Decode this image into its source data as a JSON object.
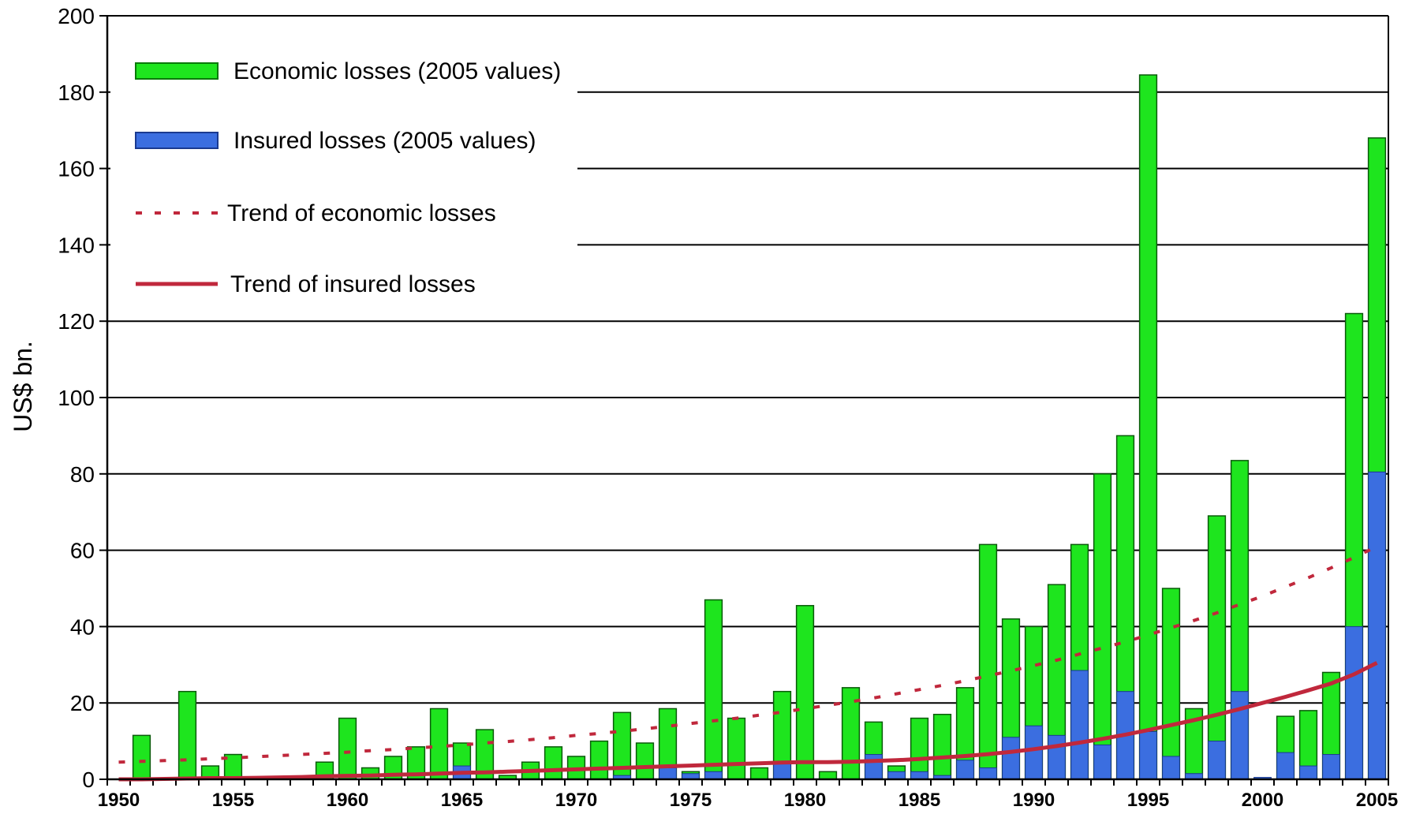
{
  "chart_data": {
    "type": "bar",
    "title": "",
    "xlabel": "",
    "ylabel": "US$ bn.",
    "ylim": [
      0,
      200
    ],
    "yticks": [
      0,
      20,
      40,
      60,
      80,
      100,
      120,
      140,
      160,
      180,
      200
    ],
    "xtick_labels": [
      {
        "year": 1950,
        "label": "1950"
      },
      {
        "year": 1955,
        "label": "1955"
      },
      {
        "year": 1960,
        "label": "1960"
      },
      {
        "year": 1965,
        "label": "1965"
      },
      {
        "year": 1970,
        "label": "1970"
      },
      {
        "year": 1975,
        "label": "1975"
      },
      {
        "year": 1980,
        "label": "1980"
      },
      {
        "year": 1985,
        "label": "1985"
      },
      {
        "year": 1990,
        "label": "1990"
      },
      {
        "year": 1995,
        "label": "1995"
      },
      {
        "year": 2000,
        "label": "2000"
      },
      {
        "year": 2005,
        "label": "2005"
      }
    ],
    "grid": true,
    "legend_position": "top-left",
    "years": [
      1950,
      1951,
      1952,
      1953,
      1954,
      1955,
      1956,
      1957,
      1958,
      1959,
      1960,
      1961,
      1962,
      1963,
      1964,
      1965,
      1966,
      1967,
      1968,
      1969,
      1970,
      1971,
      1972,
      1973,
      1974,
      1975,
      1976,
      1977,
      1978,
      1979,
      1980,
      1981,
      1982,
      1983,
      1984,
      1985,
      1986,
      1987,
      1988,
      1989,
      1990,
      1991,
      1992,
      1993,
      1994,
      1995,
      1996,
      1997,
      1998,
      1999,
      2000,
      2001,
      2002,
      2003,
      2004,
      2005
    ],
    "series": [
      {
        "name": "Economic losses (2005 values)",
        "kind": "bar",
        "color": "#1ee51e",
        "values": [
          0,
          11.5,
          0,
          23,
          3.5,
          6.5,
          0,
          0,
          0,
          4.5,
          16,
          3,
          6,
          8.5,
          18.5,
          9.5,
          13,
          1,
          4.5,
          8.5,
          6,
          10,
          17.5,
          9.5,
          18.5,
          2,
          47,
          16,
          3,
          23,
          45.5,
          2,
          24,
          15,
          3.5,
          16,
          17,
          24,
          61.5,
          42,
          40,
          51,
          61.5,
          80,
          90,
          184.5,
          50,
          18.5,
          69,
          83.5,
          0,
          16.5,
          18,
          28,
          122,
          168
        ]
      },
      {
        "name": "Insured losses (2005 values)",
        "kind": "bar",
        "color": "#3b6ee0",
        "values": [
          0,
          0,
          0,
          0,
          0,
          0,
          0,
          0,
          0,
          0,
          0,
          0,
          0,
          0,
          0,
          3.5,
          0,
          0,
          0,
          0,
          0,
          0,
          1,
          0,
          3,
          1.5,
          2,
          0,
          0,
          4.5,
          0,
          0,
          0,
          6.5,
          2,
          2,
          1,
          5,
          3,
          11,
          14,
          11.5,
          28.5,
          9,
          23,
          12.5,
          6,
          1.5,
          10,
          23,
          0.5,
          7,
          3.5,
          6.5,
          40,
          80.5
        ]
      },
      {
        "name": "Trend of economic losses",
        "kind": "dashed-line",
        "color": "#c0283c",
        "values": [
          4.5,
          4.7,
          4.9,
          5.1,
          5.4,
          5.6,
          5.9,
          6.2,
          6.5,
          6.8,
          7.1,
          7.5,
          7.8,
          8.2,
          8.6,
          9,
          9.5,
          9.9,
          10.4,
          10.9,
          11.5,
          12,
          12.6,
          13.2,
          13.9,
          14.6,
          15.3,
          16,
          16.8,
          17.6,
          18.5,
          19.4,
          20.3,
          21.3,
          22.4,
          23.5,
          24.6,
          25.8,
          27.1,
          28.4,
          29.8,
          31.2,
          32.8,
          34.4,
          36,
          37.8,
          39.7,
          41.6,
          43.6,
          45.8,
          48,
          50.4,
          52.8,
          55.4,
          58.1,
          61
        ]
      },
      {
        "name": "Trend of insured losses",
        "kind": "solid-line",
        "color": "#c0283c",
        "values": [
          0,
          0,
          0.1,
          0.2,
          0.3,
          0.3,
          0.4,
          0.5,
          0.6,
          0.8,
          0.9,
          1,
          1.2,
          1.3,
          1.5,
          1.7,
          1.8,
          2,
          2.2,
          2.4,
          2.6,
          2.8,
          3,
          3.2,
          3.4,
          3.6,
          3.8,
          4,
          4.2,
          4.4,
          4.5,
          4.5,
          4.6,
          4.8,
          5,
          5.3,
          5.7,
          6.1,
          6.6,
          7.2,
          7.9,
          8.7,
          9.6,
          10.6,
          11.7,
          12.9,
          14.2,
          15.5,
          16.9,
          18.4,
          20,
          21.6,
          23.3,
          25.1,
          27.5,
          30.5
        ]
      }
    ]
  }
}
